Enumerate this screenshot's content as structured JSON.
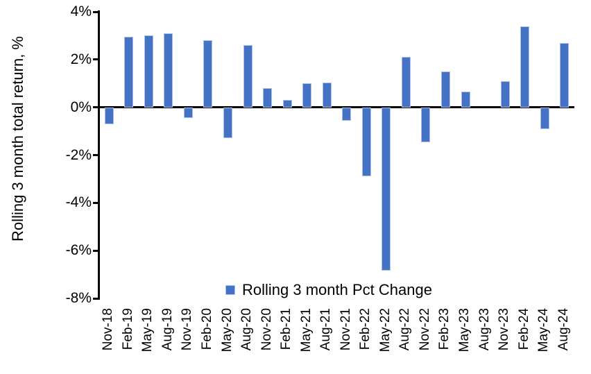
{
  "chart_data": {
    "type": "bar",
    "title": "",
    "xlabel": "",
    "ylabel": "Rolling 3 month total return, %",
    "categories": [
      "Nov-18",
      "Feb-19",
      "May-19",
      "Aug-19",
      "Nov-19",
      "Feb-20",
      "May-20",
      "Aug-20",
      "Nov-20",
      "Feb-21",
      "May-21",
      "Aug-21",
      "Nov-21",
      "Feb-22",
      "May-22",
      "Aug-22",
      "Nov-22",
      "Feb-23",
      "May-23",
      "Aug-23",
      "Nov-23",
      "Feb-24",
      "May-24",
      "Aug-24"
    ],
    "values": [
      -0.7,
      2.95,
      3.0,
      3.1,
      -0.45,
      2.8,
      -1.3,
      2.6,
      0.8,
      0.3,
      1.0,
      1.05,
      -0.55,
      -2.9,
      -6.85,
      2.1,
      -1.45,
      1.5,
      0.65,
      0.0,
      1.1,
      3.4,
      -0.9,
      2.7
    ],
    "ylim": [
      -8,
      4
    ],
    "yticks": [
      4,
      2,
      0,
      -2,
      -4,
      -6,
      -8
    ],
    "ytick_labels": [
      "4%",
      "2%",
      "0%",
      "-2%",
      "-4%",
      "-6%",
      "-8%"
    ],
    "grid": false,
    "legend": {
      "position": "bottom-center",
      "entries": [
        "Rolling 3 month Pct Change"
      ]
    },
    "colors": {
      "bar_fill": "#4472C4",
      "bar_border": "#A9BFE8",
      "axis": "#000000",
      "text": "#000000",
      "background": "#FFFFFF"
    }
  }
}
